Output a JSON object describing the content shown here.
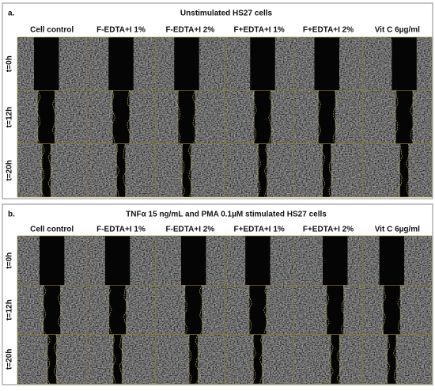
{
  "panels": [
    {
      "label": "a.",
      "title": "Unstimulated HS27 cells",
      "columns": [
        "Cell control",
        "F-EDTA+I 1%",
        "F-EDTA+I 2%",
        "F+EDTA+I 1%",
        "F+EDTA+I 2%",
        "Vit C 6µg/ml"
      ],
      "rows": [
        "t=0h",
        "t=12h",
        "t=20h"
      ]
    },
    {
      "label": "b.",
      "title": "TNFα 15 ng/mL and PMA 0.1µM stimulated HS27 cells",
      "columns": [
        "Cell control",
        "F-EDTA+I 1%",
        "F-EDTA+I 2%",
        "F+EDTA+I 1%",
        "F+EDTA+I 2%",
        "Vit C 6µg/ml"
      ],
      "rows": [
        "t=0h",
        "t=12h",
        "t=20h"
      ]
    }
  ]
}
